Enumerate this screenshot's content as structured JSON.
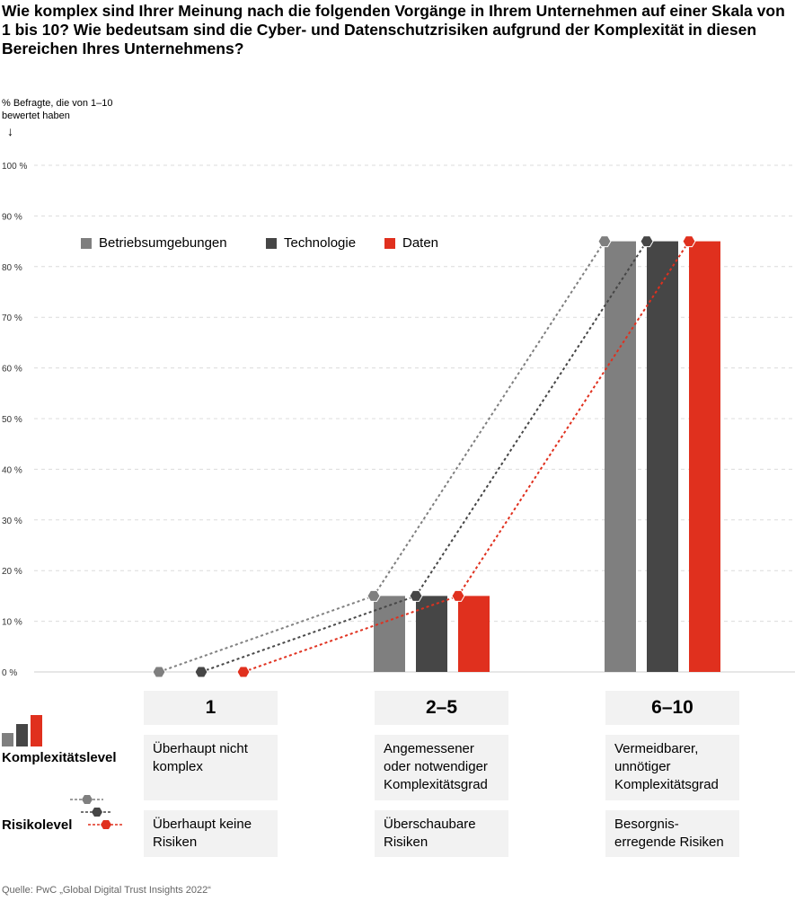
{
  "title": "Wie komplex sind Ihrer Meinung nach die folgenden Vorgänge in Ihrem Unternehmen auf einer Skala von 1 bis 10? Wie bedeutsam sind die Cyber- und Datenschutzrisiken aufgrund der Komplexität in diesen Bereichen Ihres Unternehmens?",
  "source": "Quelle: PwC „Global Digital Trust Insights 2022“",
  "chart_data": {
    "type": "bar",
    "ylabel": "% Befragte, die von 1–10 bewertet haben",
    "ylim": [
      0,
      100
    ],
    "yticks": [
      "0 %",
      "10 %",
      "20 %",
      "30 %",
      "40 %",
      "50 %",
      "60 %",
      "70 %",
      "80 %",
      "90 %",
      "100 %"
    ],
    "grid": true,
    "legend_position": "top-left",
    "categories": [
      "1",
      "2–5",
      "6–10"
    ],
    "series": [
      {
        "name": "Betriebsumgebungen",
        "color": "#7f7f7f",
        "values": [
          0,
          15,
          85
        ]
      },
      {
        "name": "Technologie",
        "color": "#464646",
        "values": [
          0,
          15,
          85
        ]
      },
      {
        "name": "Daten",
        "color": "#e0301e",
        "values": [
          0,
          15,
          85
        ]
      }
    ],
    "connector_lines": "dotted lines with hexagon markers linking values across categories"
  },
  "rows": {
    "complexity_label": "Komplexitätslevel",
    "risk_label": "Risikolevel",
    "complexity": [
      "Überhaupt nicht komplex",
      "Angemessener oder notwendiger Komplexitätsgrad",
      "Vermeidbarer, unnötiger Komplexitätsgrad"
    ],
    "risk": [
      "Überhaupt keine Risiken",
      "Überschaubare Risiken",
      "Besorgnis-erregende Risiken"
    ]
  }
}
